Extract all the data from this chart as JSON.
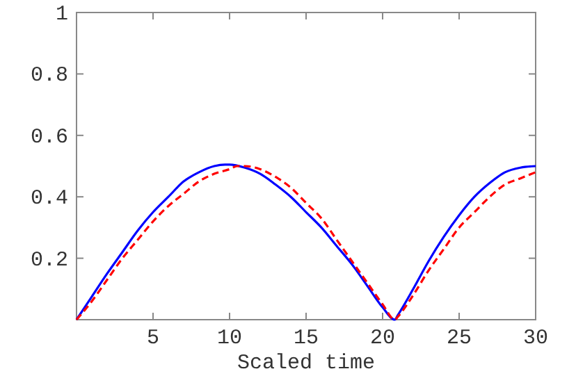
{
  "chart_data": {
    "type": "line",
    "xlabel": "Scaled time",
    "xlim": [
      0,
      30
    ],
    "ylim": [
      0,
      1
    ],
    "xticks": [
      5,
      10,
      15,
      20,
      25,
      30
    ],
    "yticks": [
      0.2,
      0.4,
      0.6,
      0.8,
      1
    ],
    "grid": false,
    "series": [
      {
        "color": "#0000ff",
        "line_style": "solid",
        "x": [
          0,
          1,
          2,
          3,
          4,
          5,
          6,
          7,
          8,
          9,
          9.7,
          10,
          11,
          12,
          13,
          14,
          15,
          16,
          17,
          18,
          19,
          20,
          20.8,
          21,
          22,
          23,
          24,
          25,
          26,
          27,
          28,
          29,
          30
        ],
        "values": [
          0,
          0.075,
          0.15,
          0.22,
          0.29,
          0.35,
          0.4,
          0.45,
          0.48,
          0.5,
          0.505,
          0.505,
          0.495,
          0.475,
          0.44,
          0.4,
          0.35,
          0.3,
          0.24,
          0.18,
          0.11,
          0.04,
          0,
          0.015,
          0.1,
          0.19,
          0.27,
          0.34,
          0.4,
          0.445,
          0.48,
          0.495,
          0.5
        ]
      },
      {
        "color": "#ff0000",
        "line_style": "dashed",
        "x": [
          0,
          1,
          2,
          3,
          4,
          5,
          6,
          7,
          8,
          9,
          10,
          10.5,
          11,
          12,
          13,
          14,
          15,
          16,
          17,
          18,
          19,
          20,
          20.8,
          21,
          22,
          23,
          24,
          25,
          26,
          27,
          28,
          29,
          30
        ],
        "values": [
          0,
          0.06,
          0.13,
          0.2,
          0.26,
          0.32,
          0.37,
          0.41,
          0.45,
          0.475,
          0.49,
          0.5,
          0.5,
          0.49,
          0.465,
          0.43,
          0.38,
          0.33,
          0.26,
          0.19,
          0.12,
          0.05,
          0,
          0.01,
          0.08,
          0.16,
          0.23,
          0.3,
          0.35,
          0.4,
          0.44,
          0.46,
          0.48
        ]
      }
    ]
  }
}
